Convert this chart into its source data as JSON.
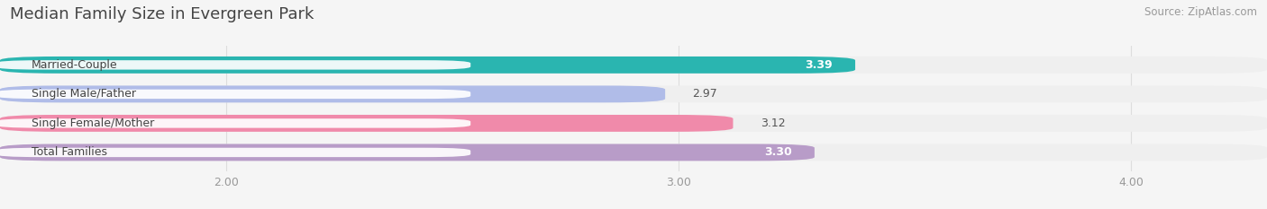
{
  "title": "Median Family Size in Evergreen Park",
  "source": "Source: ZipAtlas.com",
  "categories": [
    "Married-Couple",
    "Single Male/Father",
    "Single Female/Mother",
    "Total Families"
  ],
  "values": [
    3.39,
    2.97,
    3.12,
    3.3
  ],
  "bar_colors": [
    "#2ab5b0",
    "#b0bce8",
    "#f08aaa",
    "#b89cc8"
  ],
  "bar_bg_colors": [
    "#efefef",
    "#efefef",
    "#efefef",
    "#efefef"
  ],
  "value_inside": [
    true,
    false,
    false,
    true
  ],
  "xmin": 1.5,
  "xmax": 4.3,
  "xticks": [
    2.0,
    3.0,
    4.0
  ],
  "xtick_labels": [
    "2.00",
    "3.00",
    "4.00"
  ],
  "title_fontsize": 13,
  "source_fontsize": 8.5,
  "bar_label_fontsize": 9,
  "value_fontsize": 9,
  "tick_fontsize": 9,
  "background_color": "#f5f5f5"
}
